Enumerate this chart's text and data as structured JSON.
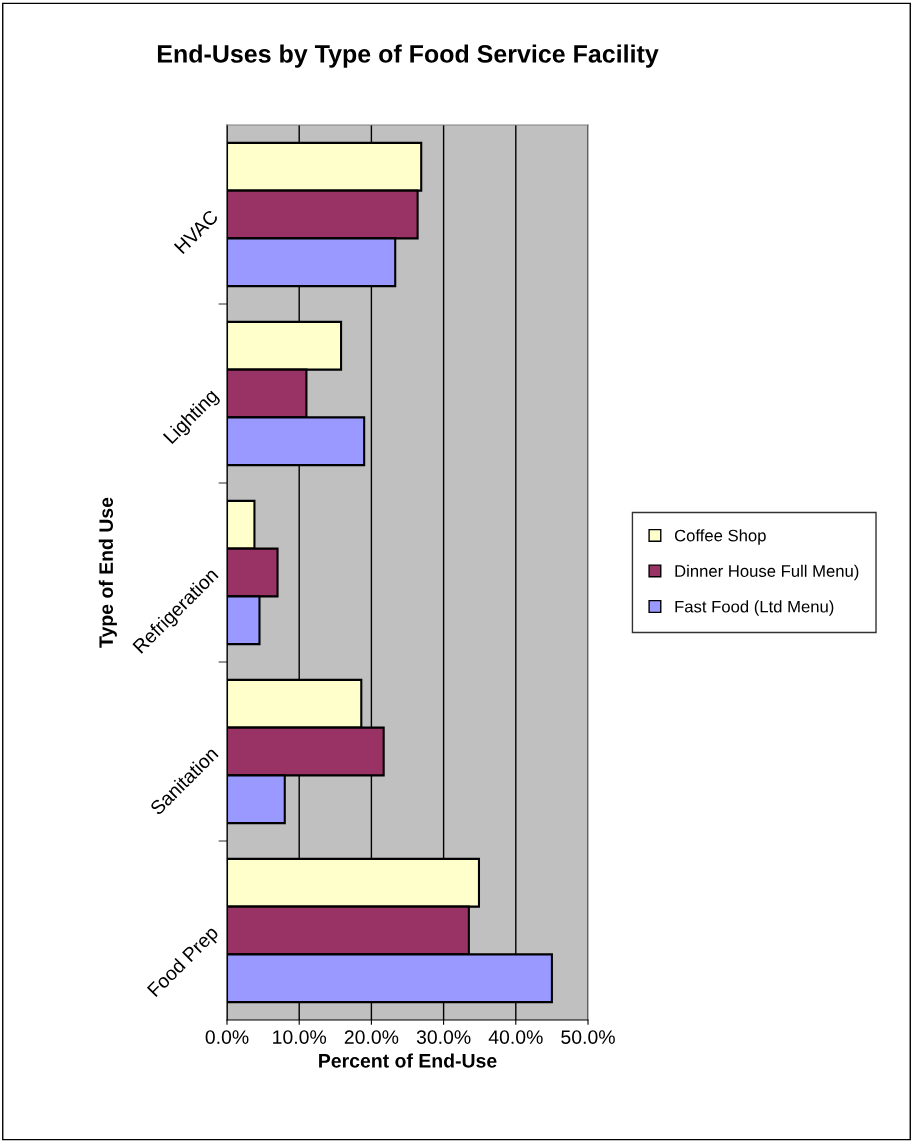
{
  "chart_data": {
    "type": "bar",
    "orientation": "horizontal",
    "title": "End-Uses by Type of Food Service Facility",
    "xlabel": "Percent of End-Use",
    "ylabel": "Type of End Use",
    "categories": [
      "HVAC",
      "Lighting",
      "Refrigeration",
      "Sanitation",
      "Food Prep"
    ],
    "series": [
      {
        "name": "Coffee Shop",
        "color": "#ffffcc",
        "values": [
          26.9,
          15.8,
          3.8,
          18.6,
          34.9
        ]
      },
      {
        "name": "Dinner House Full Menu)",
        "color": "#993366",
        "values": [
          26.4,
          11.0,
          7.0,
          21.7,
          33.5
        ]
      },
      {
        "name": "Fast Food (Ltd Menu)",
        "color": "#9999ff",
        "values": [
          23.3,
          19.0,
          4.5,
          8.0,
          45.0
        ]
      }
    ],
    "xlim": [
      0,
      50
    ],
    "xticks": [
      {
        "value": 0,
        "label": "0.0%"
      },
      {
        "value": 10,
        "label": "10.0%"
      },
      {
        "value": 20,
        "label": "20.0%"
      },
      {
        "value": 30,
        "label": "30.0%"
      },
      {
        "value": 40,
        "label": "40.0%"
      },
      {
        "value": 50,
        "label": "50.0%"
      }
    ],
    "grid": "x",
    "legend": "right"
  }
}
